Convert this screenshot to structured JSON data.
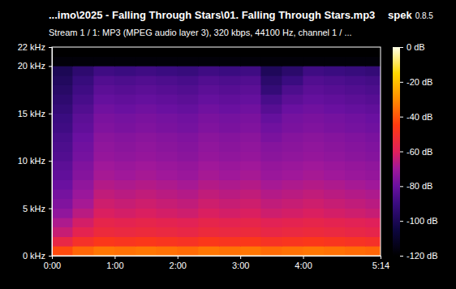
{
  "chart_data": {
    "type": "heatmap",
    "title": "...imo\\2025 - Falling Through Stars\\01. Falling Through Stars.mp3",
    "app_name": "spek",
    "app_version": "0.8.5",
    "subtitle": "Stream 1 / 1: MP3 (MPEG audio layer 3), 320 kbps, 44100 Hz, channel 1 / ...",
    "xlim": [
      0,
      314
    ],
    "xticks": [
      {
        "value": 0,
        "label": "0:00"
      },
      {
        "value": 60,
        "label": "1:00"
      },
      {
        "value": 120,
        "label": "2:00"
      },
      {
        "value": 180,
        "label": "3:00"
      },
      {
        "value": 240,
        "label": "4:00"
      },
      {
        "value": 314,
        "label": "5:14"
      }
    ],
    "ylim": [
      0,
      22
    ],
    "yticks": [
      {
        "value": 0,
        "label": "0 kHz"
      },
      {
        "value": 5,
        "label": "5 kHz"
      },
      {
        "value": 10,
        "label": "10 kHz"
      },
      {
        "value": 15,
        "label": "15 kHz"
      },
      {
        "value": 20,
        "label": "20 kHz"
      },
      {
        "value": 22,
        "label": "22 kHz"
      }
    ],
    "x_bins": [
      0,
      20,
      40,
      60,
      80,
      100,
      120,
      140,
      160,
      180,
      200,
      220,
      240,
      260,
      280,
      300,
      314
    ],
    "y_bins": [
      0,
      1,
      2,
      3,
      4,
      5,
      6,
      7,
      8,
      9,
      10,
      11,
      12,
      13,
      14,
      15,
      16,
      17,
      18,
      19,
      20,
      21,
      22
    ],
    "cells": [
      [
        -42,
        -37,
        -34,
        -35,
        -34,
        -35,
        -36,
        -34,
        -35,
        -34,
        -36,
        -35,
        -34,
        -35,
        -36,
        -37
      ],
      [
        -56,
        -50,
        -47,
        -48,
        -47,
        -48,
        -49,
        -47,
        -48,
        -47,
        -49,
        -48,
        -47,
        -48,
        -49,
        -50
      ],
      [
        -64,
        -58,
        -54,
        -55,
        -54,
        -55,
        -56,
        -54,
        -55,
        -54,
        -56,
        -55,
        -54,
        -55,
        -56,
        -57
      ],
      [
        -68,
        -62,
        -57,
        -58,
        -57,
        -58,
        -59,
        -57,
        -58,
        -57,
        -59,
        -58,
        -57,
        -58,
        -59,
        -60
      ],
      [
        -73,
        -66,
        -61,
        -62,
        -61,
        -62,
        -63,
        -61,
        -62,
        -61,
        -63,
        -62,
        -61,
        -62,
        -63,
        -64
      ],
      [
        -76,
        -69,
        -63,
        -64,
        -63,
        -64,
        -65,
        -63,
        -64,
        -63,
        -65,
        -64,
        -63,
        -64,
        -65,
        -66
      ],
      [
        -78,
        -71,
        -65,
        -66,
        -65,
        -66,
        -67,
        -65,
        -66,
        -65,
        -67,
        -66,
        -65,
        -66,
        -67,
        -68
      ],
      [
        -80,
        -73,
        -67,
        -68,
        -67,
        -68,
        -69,
        -67,
        -68,
        -67,
        -69,
        -68,
        -67,
        -68,
        -69,
        -70
      ],
      [
        -82,
        -75,
        -69,
        -70,
        -69,
        -70,
        -71,
        -69,
        -70,
        -69,
        -71,
        -70,
        -69,
        -70,
        -71,
        -72
      ],
      [
        -83,
        -76,
        -70,
        -71,
        -70,
        -71,
        -72,
        -70,
        -71,
        -70,
        -72,
        -71,
        -70,
        -71,
        -72,
        -73
      ],
      [
        -85,
        -78,
        -72,
        -73,
        -72,
        -73,
        -74,
        -72,
        -73,
        -72,
        -74,
        -73,
        -72,
        -73,
        -74,
        -75
      ],
      [
        -86,
        -79,
        -73,
        -74,
        -73,
        -74,
        -75,
        -73,
        -74,
        -73,
        -75,
        -74,
        -73,
        -74,
        -75,
        -76
      ],
      [
        -87,
        -80,
        -74,
        -75,
        -74,
        -75,
        -76,
        -74,
        -75,
        -74,
        -77,
        -75,
        -74,
        -75,
        -76,
        -77
      ],
      [
        -89,
        -82,
        -76,
        -77,
        -76,
        -77,
        -78,
        -76,
        -77,
        -76,
        -79,
        -77,
        -76,
        -77,
        -78,
        -79
      ],
      [
        -90,
        -83,
        -77,
        -78,
        -77,
        -78,
        -79,
        -77,
        -78,
        -77,
        -81,
        -78,
        -77,
        -78,
        -79,
        -80
      ],
      [
        -92,
        -85,
        -79,
        -80,
        -79,
        -80,
        -81,
        -79,
        -80,
        -79,
        -84,
        -80,
        -79,
        -80,
        -81,
        -82
      ],
      [
        -94,
        -87,
        -81,
        -82,
        -81,
        -82,
        -83,
        -81,
        -82,
        -81,
        -87,
        -83,
        -81,
        -82,
        -83,
        -84
      ],
      [
        -96,
        -89,
        -83,
        -84,
        -83,
        -84,
        -85,
        -83,
        -84,
        -83,
        -92,
        -86,
        -83,
        -84,
        -85,
        -86
      ],
      [
        -98,
        -91,
        -85,
        -86,
        -85,
        -86,
        -87,
        -85,
        -86,
        -85,
        -95,
        -90,
        -85,
        -86,
        -87,
        -88
      ],
      [
        -100,
        -94,
        -89,
        -90,
        -89,
        -90,
        -91,
        -89,
        -90,
        -89,
        -99,
        -95,
        -89,
        -90,
        -91,
        -92
      ],
      [
        -118,
        -118,
        -118,
        -118,
        -118,
        -118,
        -118,
        -118,
        -118,
        -118,
        -118,
        -118,
        -118,
        -118,
        -118,
        -118
      ],
      [
        -120,
        -120,
        -120,
        -120,
        -120,
        -120,
        -120,
        -120,
        -120,
        -120,
        -120,
        -120,
        -120,
        -120,
        -120,
        -120
      ]
    ],
    "colorbar": {
      "range": [
        -120,
        0
      ],
      "ticks": [
        {
          "value": 0,
          "label": "0 dB"
        },
        {
          "value": -20,
          "label": "-20 dB"
        },
        {
          "value": -40,
          "label": "-40 dB"
        },
        {
          "value": -60,
          "label": "-60 dB"
        },
        {
          "value": -80,
          "label": "-80 dB"
        },
        {
          "value": -100,
          "label": "-100 dB"
        },
        {
          "value": -120,
          "label": "-120 dB"
        }
      ]
    }
  }
}
